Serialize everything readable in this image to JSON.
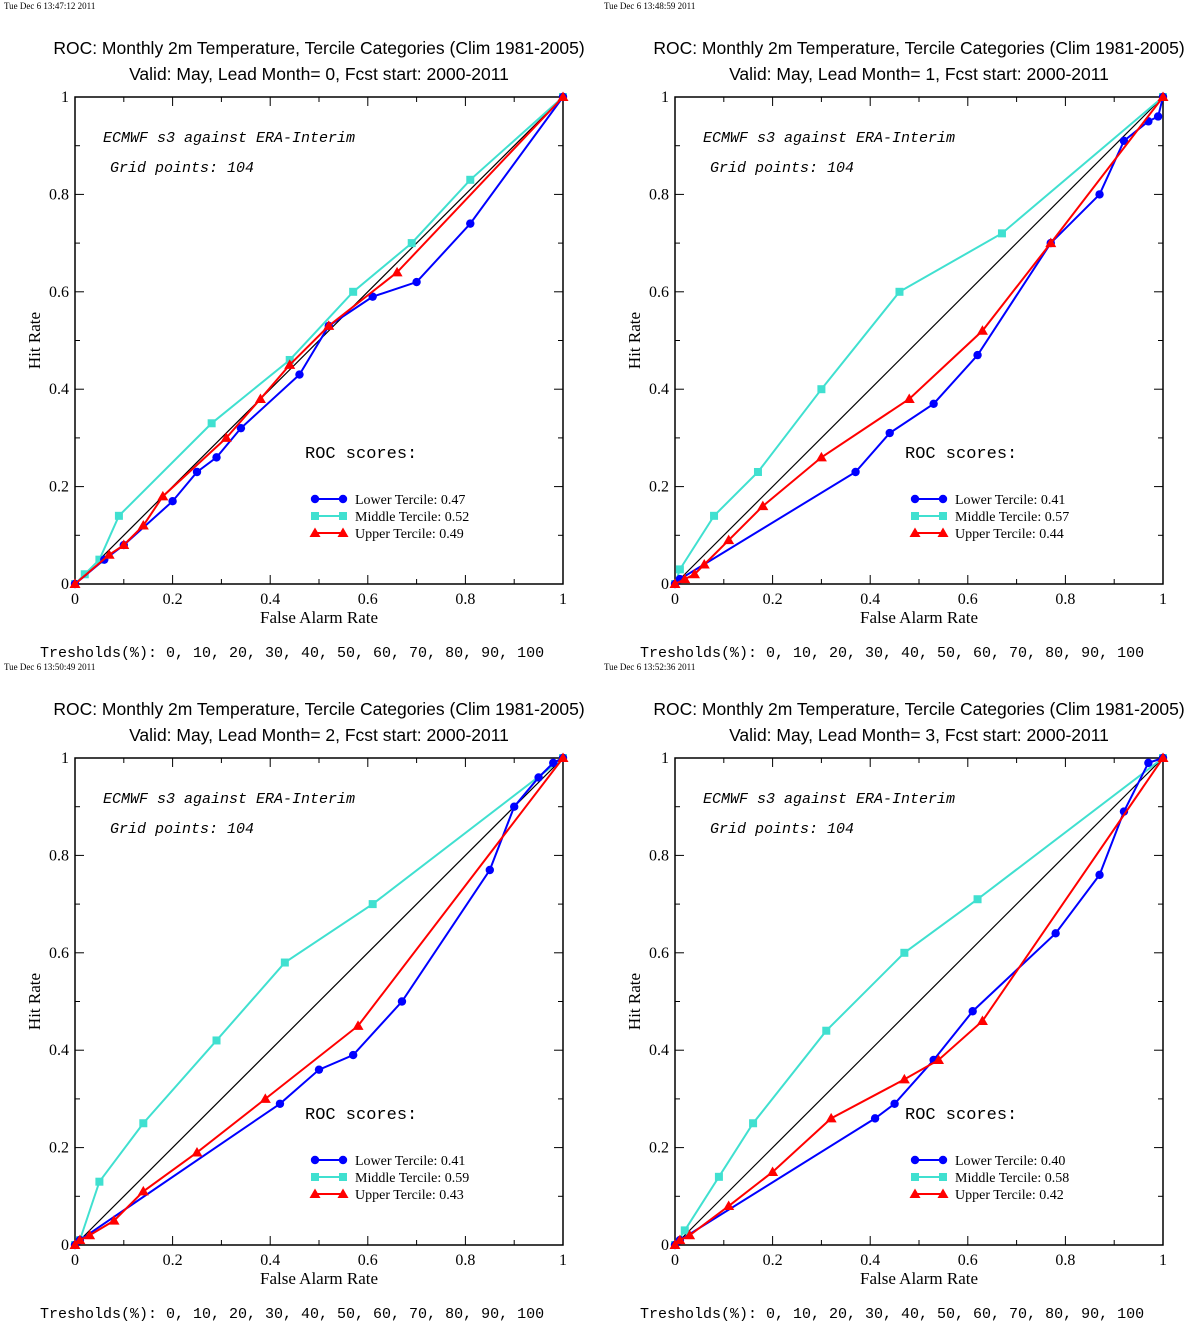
{
  "colors": {
    "lower": "#0000ff",
    "middle": "#40e0d0",
    "upper": "#ff0000",
    "diagonal": "#000000"
  },
  "icons": {
    "lower": "circle-marker",
    "middle": "square-marker",
    "upper": "triangle-marker"
  },
  "chart_data": [
    {
      "type": "line",
      "timestamp": "Tue Dec  6 13:47:12 2011",
      "title": "ROC: Monthly 2m Temperature, Tercile Categories (Clim 1981-2005)",
      "subtitle": "Valid: May, Lead Month= 0, Fcst start: 2000-2011",
      "annotation1": "ECMWF s3 against ERA-Interim",
      "annotation2": "Grid points:  104",
      "scores_heading": "ROC scores:",
      "xlabel": "False Alarm Rate",
      "ylabel": "Hit Rate",
      "xlim": [
        0,
        1
      ],
      "ylim": [
        0,
        1
      ],
      "ticks": [
        "0",
        "0.2",
        "0.4",
        "0.6",
        "0.8",
        "1"
      ],
      "legend_position": "lower-right",
      "thresholds": "Tresholds(%): 0, 10, 20, 30, 40, 50, 60, 70, 80, 90, 100",
      "series": [
        {
          "name": "Lower Tercile: 0.47",
          "x": [
            0,
            0.06,
            0.1,
            0.2,
            0.25,
            0.29,
            0.34,
            0.46,
            0.52,
            0.61,
            0.7,
            0.81,
            1
          ],
          "y": [
            0,
            0.05,
            0.08,
            0.17,
            0.23,
            0.26,
            0.32,
            0.43,
            0.53,
            0.59,
            0.62,
            0.74,
            1
          ]
        },
        {
          "name": "Middle Tercile: 0.52",
          "x": [
            0,
            0.02,
            0.05,
            0.09,
            0.28,
            0.44,
            0.57,
            0.69,
            0.81,
            1
          ],
          "y": [
            0,
            0.02,
            0.05,
            0.14,
            0.33,
            0.46,
            0.6,
            0.7,
            0.83,
            1
          ]
        },
        {
          "name": "Upper Tercile: 0.49",
          "x": [
            0,
            0.07,
            0.1,
            0.14,
            0.18,
            0.31,
            0.38,
            0.44,
            0.52,
            0.66,
            1
          ],
          "y": [
            0,
            0.06,
            0.08,
            0.12,
            0.18,
            0.3,
            0.38,
            0.45,
            0.53,
            0.64,
            1
          ]
        }
      ]
    },
    {
      "type": "line",
      "timestamp": "Tue Dec  6 13:48:59 2011",
      "title": "ROC: Monthly 2m Temperature, Tercile Categories (Clim 1981-2005)",
      "subtitle": "Valid: May, Lead Month= 1, Fcst start: 2000-2011",
      "annotation1": "ECMWF s3 against ERA-Interim",
      "annotation2": "Grid points:  104",
      "scores_heading": "ROC scores:",
      "xlabel": "False Alarm Rate",
      "ylabel": "Hit Rate",
      "xlim": [
        0,
        1
      ],
      "ylim": [
        0,
        1
      ],
      "ticks": [
        "0",
        "0.2",
        "0.4",
        "0.6",
        "0.8",
        "1"
      ],
      "legend_position": "lower-right",
      "thresholds": "Tresholds(%): 0, 10, 20, 30, 40, 50, 60, 70, 80, 90, 100",
      "series": [
        {
          "name": "Lower Tercile: 0.41",
          "x": [
            0,
            0.01,
            0.37,
            0.44,
            0.53,
            0.62,
            0.77,
            0.87,
            0.92,
            0.97,
            0.99,
            1
          ],
          "y": [
            0,
            0.01,
            0.23,
            0.31,
            0.37,
            0.47,
            0.7,
            0.8,
            0.91,
            0.95,
            0.96,
            1
          ]
        },
        {
          "name": "Middle Tercile: 0.57",
          "x": [
            0,
            0.01,
            0.08,
            0.17,
            0.3,
            0.46,
            0.67,
            1
          ],
          "y": [
            0,
            0.03,
            0.14,
            0.23,
            0.4,
            0.6,
            0.72,
            1
          ]
        },
        {
          "name": "Upper Tercile: 0.44",
          "x": [
            0,
            0.02,
            0.04,
            0.06,
            0.11,
            0.18,
            0.3,
            0.48,
            0.63,
            0.77,
            1
          ],
          "y": [
            0,
            0.01,
            0.02,
            0.04,
            0.09,
            0.16,
            0.26,
            0.38,
            0.52,
            0.7,
            1
          ]
        }
      ]
    },
    {
      "type": "line",
      "timestamp": "Tue Dec  6 13:50:49 2011",
      "title": "ROC: Monthly 2m Temperature, Tercile Categories (Clim 1981-2005)",
      "subtitle": "Valid: May, Lead Month= 2, Fcst start: 2000-2011",
      "annotation1": "ECMWF s3 against ERA-Interim",
      "annotation2": "Grid points:  104",
      "scores_heading": "ROC scores:",
      "xlabel": "False Alarm Rate",
      "ylabel": "Hit Rate",
      "xlim": [
        0,
        1
      ],
      "ylim": [
        0,
        1
      ],
      "ticks": [
        "0",
        "0.2",
        "0.4",
        "0.6",
        "0.8",
        "1"
      ],
      "legend_position": "lower-right",
      "thresholds": "Tresholds(%): 0, 10, 20, 30, 40, 50, 60, 70, 80, 90, 100",
      "series": [
        {
          "name": "Lower Tercile: 0.41",
          "x": [
            0,
            0.01,
            0.42,
            0.5,
            0.57,
            0.67,
            0.85,
            0.9,
            0.95,
            0.98,
            1
          ],
          "y": [
            0,
            0.01,
            0.29,
            0.36,
            0.39,
            0.5,
            0.77,
            0.9,
            0.96,
            0.99,
            1
          ]
        },
        {
          "name": "Middle Tercile: 0.59",
          "x": [
            0,
            0.01,
            0.05,
            0.14,
            0.29,
            0.43,
            0.61,
            1
          ],
          "y": [
            0,
            0.01,
            0.13,
            0.25,
            0.42,
            0.58,
            0.7,
            1
          ]
        },
        {
          "name": "Upper Tercile: 0.43",
          "x": [
            0,
            0.01,
            0.03,
            0.08,
            0.14,
            0.25,
            0.39,
            0.58,
            1
          ],
          "y": [
            0,
            0.01,
            0.02,
            0.05,
            0.11,
            0.19,
            0.3,
            0.45,
            1
          ]
        }
      ]
    },
    {
      "type": "line",
      "timestamp": "Tue Dec  6 13:52:36 2011",
      "title": "ROC: Monthly 2m Temperature, Tercile Categories (Clim 1981-2005)",
      "subtitle": "Valid: May, Lead Month= 3, Fcst start: 2000-2011",
      "annotation1": "ECMWF s3 against ERA-Interim",
      "annotation2": "Grid points:  104",
      "scores_heading": "ROC scores:",
      "xlabel": "False Alarm Rate",
      "ylabel": "Hit Rate",
      "xlim": [
        0,
        1
      ],
      "ylim": [
        0,
        1
      ],
      "ticks": [
        "0",
        "0.2",
        "0.4",
        "0.6",
        "0.8",
        "1"
      ],
      "legend_position": "lower-right",
      "thresholds": "Tresholds(%): 0, 10, 20, 30, 40, 50, 60, 70, 80, 90, 100",
      "series": [
        {
          "name": "Lower Tercile: 0.40",
          "x": [
            0,
            0.01,
            0.41,
            0.45,
            0.53,
            0.61,
            0.78,
            0.87,
            0.92,
            0.97,
            1
          ],
          "y": [
            0,
            0.01,
            0.26,
            0.29,
            0.38,
            0.48,
            0.64,
            0.76,
            0.89,
            0.99,
            1
          ]
        },
        {
          "name": "Middle Tercile: 0.58",
          "x": [
            0,
            0.02,
            0.09,
            0.16,
            0.31,
            0.47,
            0.62,
            1
          ],
          "y": [
            0,
            0.03,
            0.14,
            0.25,
            0.44,
            0.6,
            0.71,
            1
          ]
        },
        {
          "name": "Upper Tercile: 0.42",
          "x": [
            0,
            0.01,
            0.03,
            0.11,
            0.2,
            0.32,
            0.47,
            0.54,
            0.63,
            1
          ],
          "y": [
            0,
            0.01,
            0.02,
            0.08,
            0.15,
            0.26,
            0.34,
            0.38,
            0.46,
            1
          ]
        }
      ]
    }
  ]
}
